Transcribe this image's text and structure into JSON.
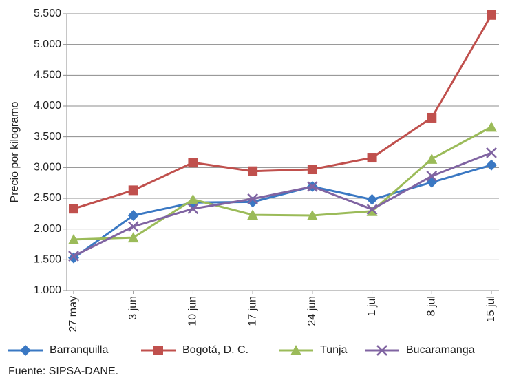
{
  "chart_data": {
    "type": "line",
    "y_label": "Precio por kilogramo",
    "source": "Fuente: SIPSA-DANE.",
    "categories": [
      "27 may",
      "3 jun",
      "10 jun",
      "17 jun",
      "24 jun",
      "1 jul",
      "8 jul",
      "15 jul"
    ],
    "series": [
      {
        "name": "Barranquilla",
        "color": "#3a78c3",
        "marker": "diamond",
        "values": [
          1530,
          2220,
          2430,
          2440,
          2690,
          2480,
          2760,
          3040
        ]
      },
      {
        "name": "Bogotá, D. C.",
        "color": "#c0504d",
        "marker": "square",
        "values": [
          2330,
          2630,
          3080,
          2940,
          2970,
          3160,
          3810,
          5480
        ]
      },
      {
        "name": "Tunja",
        "color": "#9bbb59",
        "marker": "triangle",
        "values": [
          1830,
          1860,
          2480,
          2230,
          2220,
          2290,
          3140,
          3660
        ]
      },
      {
        "name": "Bucaramanga",
        "color": "#8064a2",
        "marker": "x",
        "values": [
          1560,
          2040,
          2330,
          2490,
          2690,
          2320,
          2860,
          3240
        ]
      }
    ],
    "ylim": [
      1000,
      5500
    ],
    "yticks": [
      {
        "value": 1000,
        "label": "1.000"
      },
      {
        "value": 1500,
        "label": "1.500"
      },
      {
        "value": 2000,
        "label": "2.000"
      },
      {
        "value": 2500,
        "label": "2.500"
      },
      {
        "value": 3000,
        "label": "3.000"
      },
      {
        "value": 3500,
        "label": "3.500"
      },
      {
        "value": 4000,
        "label": "4.000"
      },
      {
        "value": 4500,
        "label": "4.500"
      },
      {
        "value": 5000,
        "label": "5.000"
      },
      {
        "value": 5500,
        "label": "5.500"
      }
    ],
    "grid": true,
    "legend": "bottom"
  }
}
